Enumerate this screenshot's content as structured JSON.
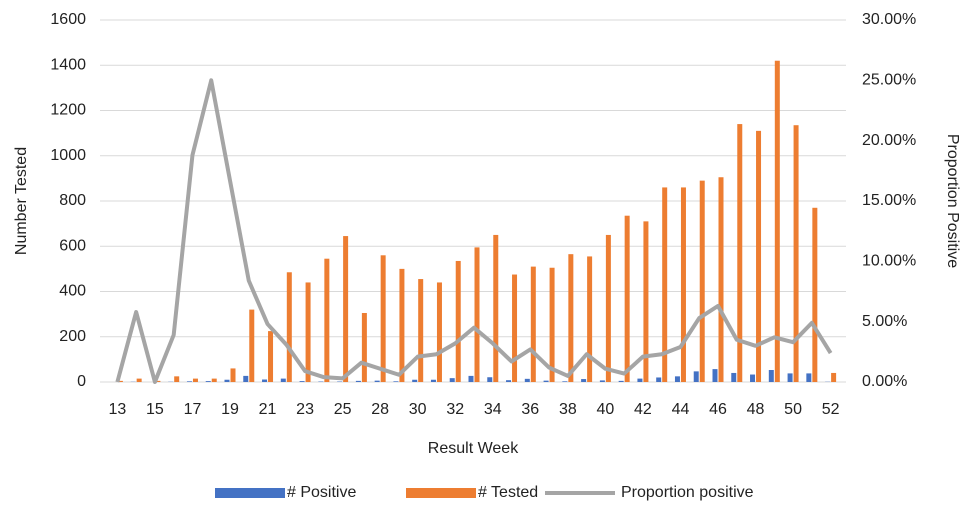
{
  "chart_data": {
    "type": "bar-line",
    "x_label": "Result Week",
    "y_label": "Number Tested",
    "y2_label": "Proportion Positive",
    "categories": [
      "13",
      null,
      "15",
      null,
      "17",
      null,
      "19",
      null,
      "21",
      null,
      "23",
      null,
      "25",
      null,
      "28",
      null,
      "30",
      null,
      "32",
      null,
      "34",
      null,
      "36",
      null,
      "38",
      null,
      "40",
      null,
      "42",
      null,
      "44",
      null,
      "46",
      null,
      "48",
      null,
      "50",
      null,
      "52"
    ],
    "series": [
      {
        "name": "# Positive",
        "type": "bar",
        "color": "#4472c4",
        "values": [
          0,
          1,
          0,
          1,
          3,
          4,
          10,
          27,
          11,
          15,
          4,
          2,
          2,
          5,
          6,
          3,
          10,
          10,
          17,
          27,
          21,
          8,
          14,
          6,
          3,
          13,
          7,
          5,
          15,
          20,
          25,
          47,
          57,
          40,
          33,
          53,
          38,
          38,
          1
        ]
      },
      {
        "name": "# Tested",
        "type": "bar",
        "color": "#ed7d31",
        "values": [
          5,
          15,
          5,
          25,
          15,
          15,
          60,
          320,
          225,
          485,
          440,
          545,
          645,
          305,
          560,
          500,
          455,
          440,
          535,
          595,
          650,
          475,
          510,
          505,
          565,
          555,
          650,
          735,
          710,
          860,
          860,
          890,
          905,
          1140,
          1110,
          1420,
          1135,
          770,
          40
        ]
      },
      {
        "name": "Proportion positive",
        "type": "line",
        "axis": "y2",
        "color": "#a5a5a5",
        "values": [
          0,
          5.8,
          0,
          3.9,
          18.8,
          25,
          16.7,
          8.4,
          4.8,
          3.1,
          0.9,
          0.4,
          0.3,
          1.6,
          1.1,
          0.6,
          2.1,
          2.3,
          3.2,
          4.5,
          3.2,
          1.7,
          2.7,
          1.2,
          0.5,
          2.3,
          1.1,
          0.7,
          2.1,
          2.3,
          2.9,
          5.3,
          6.3,
          3.5,
          3.0,
          3.7,
          3.3,
          4.9,
          2.4
        ]
      }
    ],
    "ylim": [
      0,
      1600
    ],
    "yticks": [
      0,
      200,
      400,
      600,
      800,
      1000,
      1200,
      1400,
      1600
    ],
    "y2lim": [
      0,
      30
    ],
    "y2ticks": [
      {
        "value": 0,
        "label": "0.00%"
      },
      {
        "value": 5,
        "label": "5.00%"
      },
      {
        "value": 10,
        "label": "10.00%"
      },
      {
        "value": 15,
        "label": "15.00%"
      },
      {
        "value": 20,
        "label": "20.00%"
      },
      {
        "value": 25,
        "label": "25.00%"
      },
      {
        "value": 30,
        "label": "30.00%"
      }
    ],
    "grid": true,
    "legend": "bottom"
  }
}
